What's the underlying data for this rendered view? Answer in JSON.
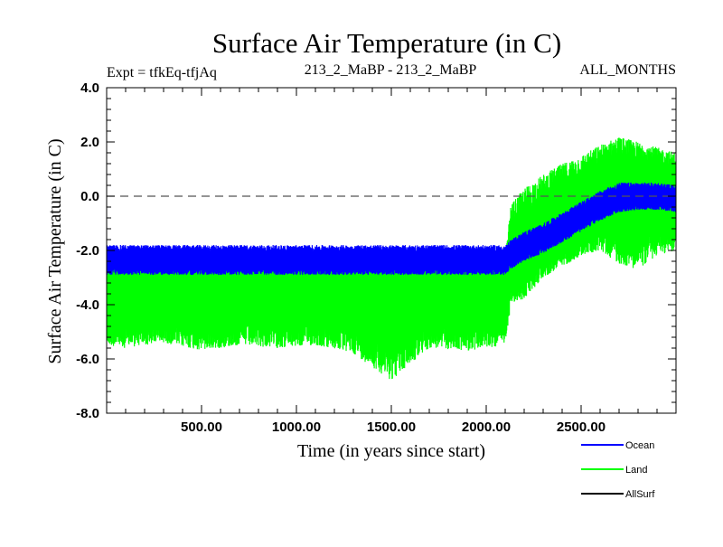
{
  "chart_data": {
    "type": "line",
    "title": "Surface Air Temperature (in C)",
    "subtitle_left": "Expt = tfkEq-tfjAq",
    "subtitle_center": "213_2_MaBP - 213_2_MaBP",
    "subtitle_right": "ALL_MONTHS",
    "xlabel": "Time (in years since start)",
    "ylabel": "Surface Air Temperature (in C)",
    "xlim": [
      0,
      3000
    ],
    "ylim": [
      -8.0,
      4.0
    ],
    "x_ticks": [
      500,
      1000,
      1500,
      2000,
      2500
    ],
    "x_tick_labels": [
      "500.00",
      "1000.00",
      "1500.00",
      "2000.00",
      "2500.00"
    ],
    "y_ticks": [
      -8,
      -6,
      -4,
      -2,
      0,
      2,
      4
    ],
    "y_tick_labels": [
      "-8.0",
      "-6.0",
      "-4.0",
      "-2.0",
      "0.0",
      "2.0",
      "4.0"
    ],
    "reference_line": {
      "y": 0.0,
      "style": "dashed"
    },
    "legend_position": "bottom-right, outside plot",
    "series": [
      {
        "name": "Land",
        "color": "#00ff00",
        "x": [
          0,
          100,
          300,
          500,
          700,
          900,
          1100,
          1300,
          1500,
          1700,
          1900,
          2100,
          2130,
          2200,
          2300,
          2400,
          2500,
          2600,
          2700,
          2800,
          2900,
          3000
        ],
        "y_mean": [
          -3.5,
          -3.55,
          -3.5,
          -3.55,
          -3.5,
          -3.5,
          -3.55,
          -3.5,
          -3.6,
          -3.5,
          -3.5,
          -3.55,
          -2.4,
          -2.0,
          -1.5,
          -1.0,
          -0.5,
          -0.1,
          0.3,
          0.3,
          0.2,
          0.1
        ],
        "y_low": [
          -5.5,
          -5.6,
          -5.4,
          -5.7,
          -5.5,
          -5.6,
          -5.5,
          -5.8,
          -6.8,
          -5.6,
          -5.7,
          -5.5,
          -4.0,
          -3.8,
          -3.0,
          -2.6,
          -2.2,
          -2.0,
          -2.5,
          -2.7,
          -2.2,
          -2.0
        ],
        "y_high": [
          -2.0,
          -2.1,
          -2.0,
          -2.1,
          -2.0,
          -2.1,
          -2.0,
          -2.1,
          -2.0,
          -2.1,
          -2.0,
          -2.1,
          -0.3,
          0.3,
          0.8,
          1.2,
          1.5,
          1.9,
          2.2,
          2.0,
          1.8,
          1.6
        ]
      },
      {
        "name": "Ocean",
        "color": "#0000ff",
        "x": [
          0,
          100,
          300,
          500,
          700,
          900,
          1100,
          1300,
          1500,
          1700,
          1900,
          2100,
          2130,
          2200,
          2300,
          2400,
          2500,
          2600,
          2700,
          2800,
          2900,
          3000
        ],
        "y_mean": [
          -2.4,
          -2.4,
          -2.4,
          -2.4,
          -2.4,
          -2.4,
          -2.4,
          -2.4,
          -2.4,
          -2.4,
          -2.4,
          -2.4,
          -2.2,
          -1.9,
          -1.6,
          -1.2,
          -0.8,
          -0.4,
          -0.1,
          0.0,
          0.0,
          -0.1
        ],
        "y_low": [
          -2.9,
          -2.9,
          -2.9,
          -2.9,
          -2.9,
          -2.9,
          -2.9,
          -2.9,
          -2.9,
          -2.9,
          -2.9,
          -2.9,
          -2.7,
          -2.4,
          -2.1,
          -1.7,
          -1.3,
          -0.9,
          -0.6,
          -0.5,
          -0.5,
          -0.6
        ],
        "y_high": [
          -1.8,
          -1.8,
          -1.8,
          -1.8,
          -1.8,
          -1.8,
          -1.8,
          -1.8,
          -1.8,
          -1.8,
          -1.8,
          -1.8,
          -1.6,
          -1.3,
          -1.0,
          -0.6,
          -0.2,
          0.2,
          0.5,
          0.5,
          0.5,
          0.4
        ]
      },
      {
        "name": "AllSurf",
        "color": "#000000",
        "x": [],
        "y_mean": []
      }
    ]
  }
}
